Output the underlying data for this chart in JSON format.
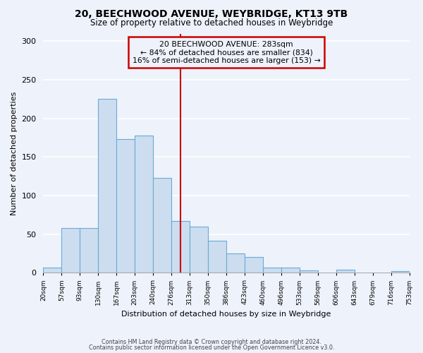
{
  "title": "20, BEECHWOOD AVENUE, WEYBRIDGE, KT13 9TB",
  "subtitle": "Size of property relative to detached houses in Weybridge",
  "xlabel": "Distribution of detached houses by size in Weybridge",
  "ylabel": "Number of detached properties",
  "bar_values": [
    7,
    58,
    58,
    225,
    173,
    178,
    123,
    67,
    60,
    41,
    25,
    20,
    7,
    7,
    3,
    0,
    4,
    0,
    0,
    2
  ],
  "bin_labels": [
    "20sqm",
    "57sqm",
    "93sqm",
    "130sqm",
    "167sqm",
    "203sqm",
    "240sqm",
    "276sqm",
    "313sqm",
    "350sqm",
    "386sqm",
    "423sqm",
    "460sqm",
    "496sqm",
    "533sqm",
    "569sqm",
    "606sqm",
    "643sqm",
    "679sqm",
    "716sqm",
    "753sqm"
  ],
  "bar_color": "#ccddf0",
  "bar_edge_color": "#6aaad4",
  "vline_x_idx": 7,
  "vline_color": "#cc0000",
  "annotation_title": "20 BEECHWOOD AVENUE: 283sqm",
  "annotation_line1": "← 84% of detached houses are smaller (834)",
  "annotation_line2": "16% of semi-detached houses are larger (153) →",
  "annotation_box_color": "#cc0000",
  "ylim": [
    0,
    310
  ],
  "yticks": [
    0,
    50,
    100,
    150,
    200,
    250,
    300
  ],
  "background_color": "#eef2fb",
  "grid_color": "#ffffff",
  "footer1": "Contains HM Land Registry data © Crown copyright and database right 2024.",
  "footer2": "Contains public sector information licensed under the Open Government Licence v3.0."
}
